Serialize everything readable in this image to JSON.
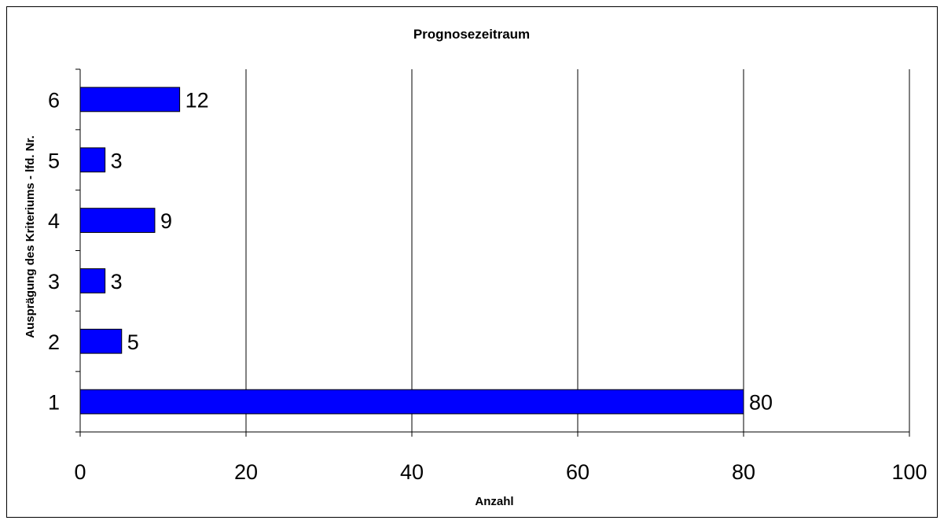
{
  "chart_data": {
    "type": "bar",
    "orientation": "horizontal",
    "title": "Prognosezeitraum",
    "xlabel": "Anzahl",
    "ylabel": "Ausprägung des Kriteriums - lfd. Nr.",
    "categories": [
      "1",
      "2",
      "3",
      "4",
      "5",
      "6"
    ],
    "values": [
      80,
      5,
      3,
      9,
      3,
      12
    ],
    "data_labels": [
      "80",
      "5",
      "3",
      "9",
      "3",
      "12"
    ],
    "xlim": [
      0,
      100
    ],
    "x_ticks": [
      0,
      20,
      40,
      60,
      80,
      100
    ],
    "x_tick_labels": [
      "0",
      "20",
      "40",
      "60",
      "80",
      "100"
    ],
    "grid": "vertical",
    "legend": "none",
    "bar_color": "#0000ff",
    "bar_edge_color": "#000000"
  }
}
